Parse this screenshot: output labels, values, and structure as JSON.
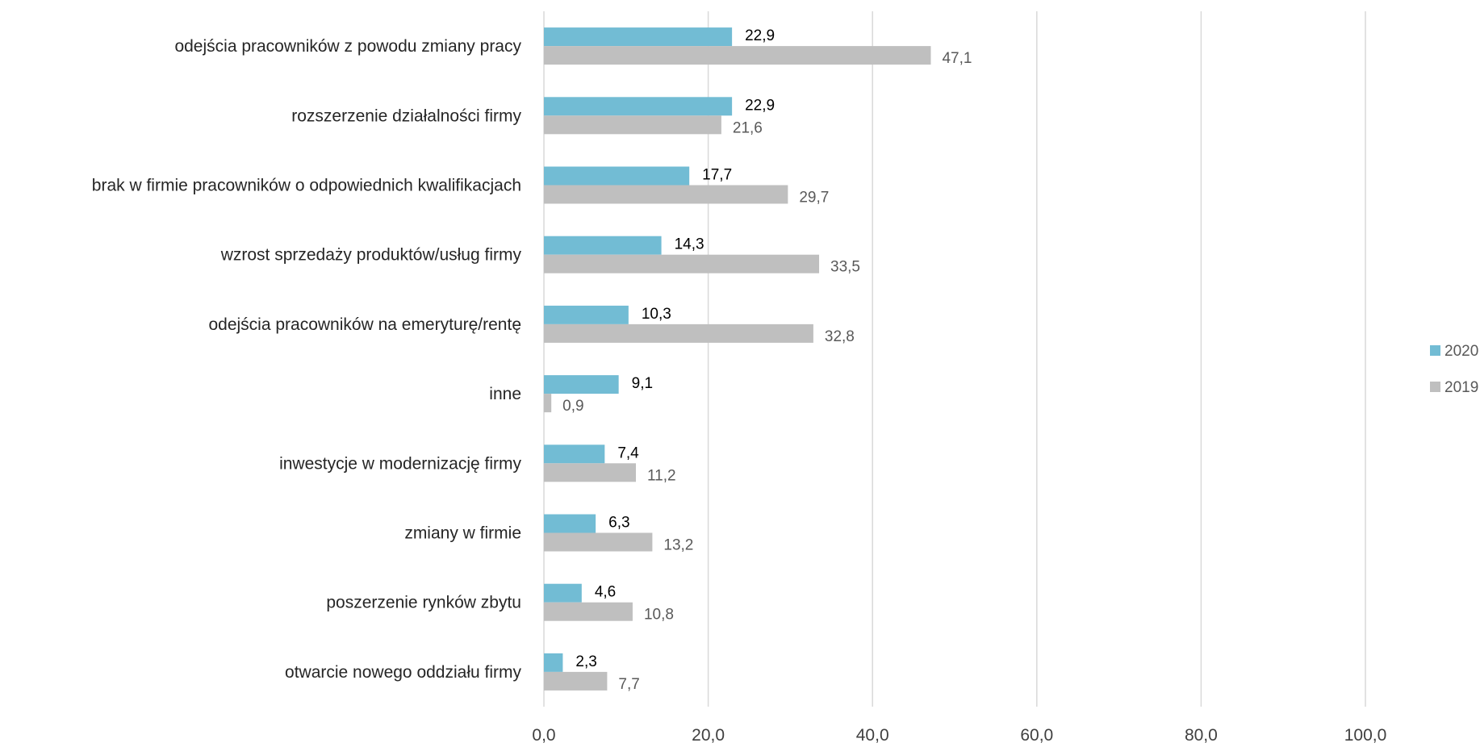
{
  "chart_data": {
    "type": "bar",
    "orientation": "horizontal",
    "categories": [
      "odejścia pracowników z powodu zmiany pracy",
      "rozszerzenie działalności firmy",
      "brak w firmie pracowników o odpowiednich kwalifikacjach",
      "wzrost sprzedaży produktów/usług firmy",
      "odejścia pracowników na emeryturę/rentę",
      "inne",
      "inwestycje w modernizację firmy",
      "zmiany w firmie",
      "poszerzenie rynków zbytu",
      "otwarcie nowego oddziału firmy"
    ],
    "series": [
      {
        "name": "2020",
        "color": "#72bcd4",
        "values": [
          22.9,
          22.9,
          17.7,
          14.3,
          10.3,
          9.1,
          7.4,
          6.3,
          4.6,
          2.3
        ],
        "labels": [
          "22,9",
          "22,9",
          "17,7",
          "14,3",
          "10,3",
          "9,1",
          "7,4",
          "6,3",
          "4,6",
          "2,3"
        ]
      },
      {
        "name": "2019",
        "color": "#bfbfbf",
        "values": [
          47.1,
          21.6,
          29.7,
          33.5,
          32.8,
          0.9,
          11.2,
          13.2,
          10.8,
          7.7
        ],
        "labels": [
          "47,1",
          "21,6",
          "29,7",
          "33,5",
          "32,8",
          "0,9",
          "11,2",
          "13,2",
          "10,8",
          "7,7"
        ]
      }
    ],
    "xlim": [
      0,
      100
    ],
    "xticks": [
      0,
      20,
      40,
      60,
      80,
      100
    ],
    "xtick_labels": [
      "0,0",
      "20,0",
      "40,0",
      "60,0",
      "80,0",
      "100,0"
    ],
    "grid": true,
    "legend_position": "right",
    "gridline_color": "#d9d9d9"
  }
}
